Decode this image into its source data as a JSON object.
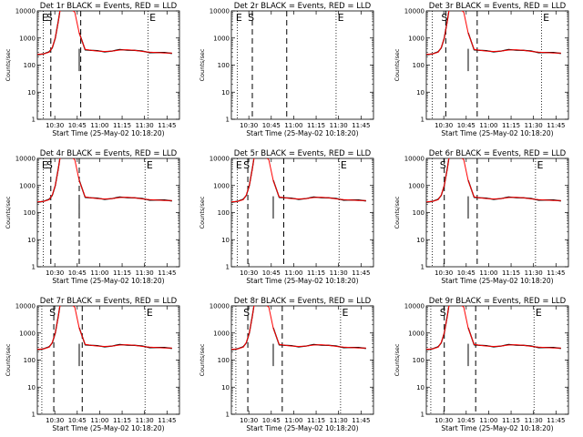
{
  "chart_data": {
    "type": "line",
    "layout": "3x3 grid of panels",
    "scale": "log",
    "ylim": [
      1,
      10000
    ],
    "y_ticks": [
      "1",
      "10",
      "100",
      "1000",
      "10000"
    ],
    "x_ticks": [
      "10:30",
      "10:45",
      "11:00",
      "11:15",
      "11:30",
      "11:45"
    ],
    "ylabel": "Counts/sec",
    "xlabel": "Start Time (25-May-02 10:18:20)",
    "series": [
      {
        "name": "Events",
        "color": "#000000"
      },
      {
        "name": "LLD",
        "color": "#ff0000"
      }
    ],
    "panels": [
      {
        "title": "Det 1r BLACK = Events, RED = LLD",
        "flags": [
          "E",
          "S",
          "E"
        ],
        "has_data": true
      },
      {
        "title": "Det 2r BLACK = Events, RED = LLD",
        "flags": [
          "E",
          "S",
          "E"
        ],
        "has_data": false
      },
      {
        "title": "Det 3r BLACK = Events, RED = LLD",
        "flags": [
          "S",
          "E"
        ],
        "has_data": true
      },
      {
        "title": "Det 4r BLACK = Events, RED = LLD",
        "flags": [
          "E",
          "S",
          "E"
        ],
        "has_data": true
      },
      {
        "title": "Det 5r BLACK = Events, RED = LLD",
        "flags": [
          "E",
          "S",
          "E"
        ],
        "has_data": true
      },
      {
        "title": "Det 6r BLACK = Events, RED = LLD",
        "flags": [
          "S",
          "E"
        ],
        "has_data": true
      },
      {
        "title": "Det 7r BLACK = Events, RED = LLD",
        "flags": [
          "S",
          "E"
        ],
        "has_data": true
      },
      {
        "title": "Det 8r BLACK = Events, RED = LLD",
        "flags": [
          "S",
          "E"
        ],
        "has_data": true
      },
      {
        "title": "Det 9r BLACK = Events, RED = LLD",
        "flags": [
          "S",
          "E"
        ],
        "has_data": true
      }
    ],
    "curve_x_min": [
      0,
      4,
      8,
      10,
      12,
      14,
      15,
      17,
      20,
      22,
      25,
      28,
      32,
      36,
      40,
      45,
      50,
      55,
      60,
      65,
      70,
      75,
      80,
      85,
      90
    ],
    "curve_y": [
      250,
      260,
      300,
      450,
      1000,
      4000,
      9500,
      12000,
      12000,
      12000,
      9000,
      1500,
      380,
      350,
      330,
      320,
      330,
      360,
      370,
      350,
      320,
      300,
      290,
      280,
      280
    ],
    "black_gap_min": [
      15,
      27
    ]
  }
}
